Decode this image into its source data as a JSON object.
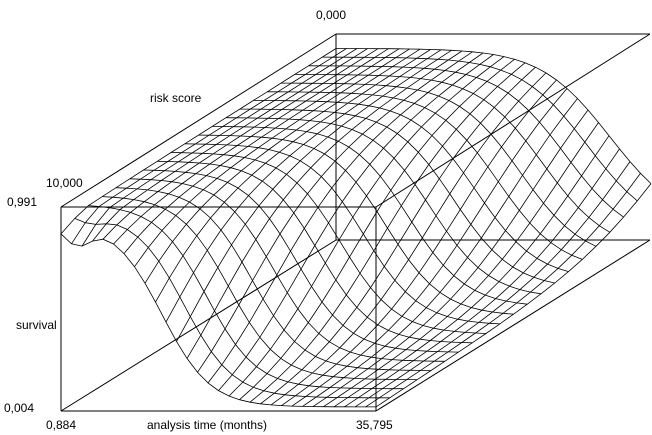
{
  "chart_data": {
    "type": "surface",
    "title": "",
    "xlabel": "analysis time (months)",
    "ylabel": "survival",
    "zlabel": "risk score",
    "x_range": [
      "0,884",
      "35,795"
    ],
    "y_range": [
      "0,004",
      "0,991"
    ],
    "z_range": [
      "0,000",
      "10,000"
    ],
    "grid": false,
    "surface_description": "Survival surface over analysis time (x) and risk score (depth). Survival starts near 0.991 at early times and declines toward ~0.004 at late times; decline is faster for higher risk scores.",
    "mesh_rows": 20,
    "mesh_cols": 30
  },
  "labels": {
    "x_min": "0,884",
    "x_max": "35,795",
    "y_min": "0,004",
    "y_max": "0,991",
    "z_min": "0,000",
    "z_max": "10,000",
    "xlabel": "analysis time (months)",
    "ylabel": "survival",
    "zlabel": "risk score"
  }
}
